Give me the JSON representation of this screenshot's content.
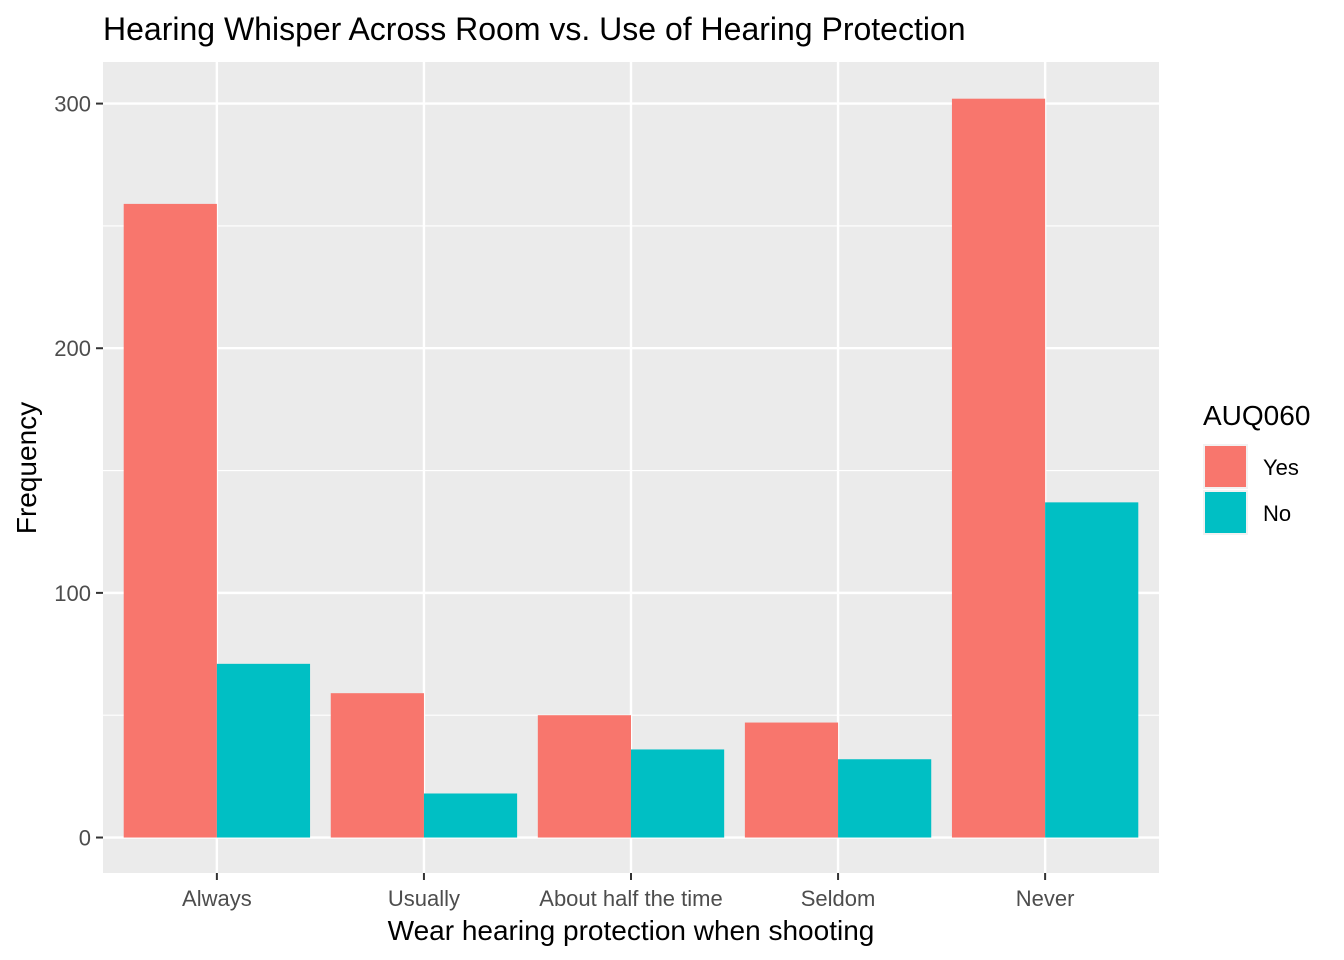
{
  "chart_data": {
    "type": "bar",
    "title": "Hearing Whisper Across Room vs. Use of Hearing Protection",
    "xlabel": "Wear hearing protection when shooting",
    "ylabel": "Frequency",
    "categories": [
      "Always",
      "Usually",
      "About half the time",
      "Seldom",
      "Never"
    ],
    "series": [
      {
        "name": "Yes",
        "color": "#F8766D",
        "values": [
          259,
          59,
          50,
          47,
          302
        ]
      },
      {
        "name": "No",
        "color": "#00BFC4",
        "values": [
          71,
          18,
          36,
          32,
          137
        ]
      }
    ],
    "ylim": [
      -14.5,
      317
    ],
    "yticks": [
      0,
      100,
      200,
      300
    ],
    "grid": true,
    "panel_background": "#EBEBEB",
    "grid_color": "#FFFFFF",
    "legend": {
      "title": "AUQ060",
      "position": "right"
    }
  }
}
